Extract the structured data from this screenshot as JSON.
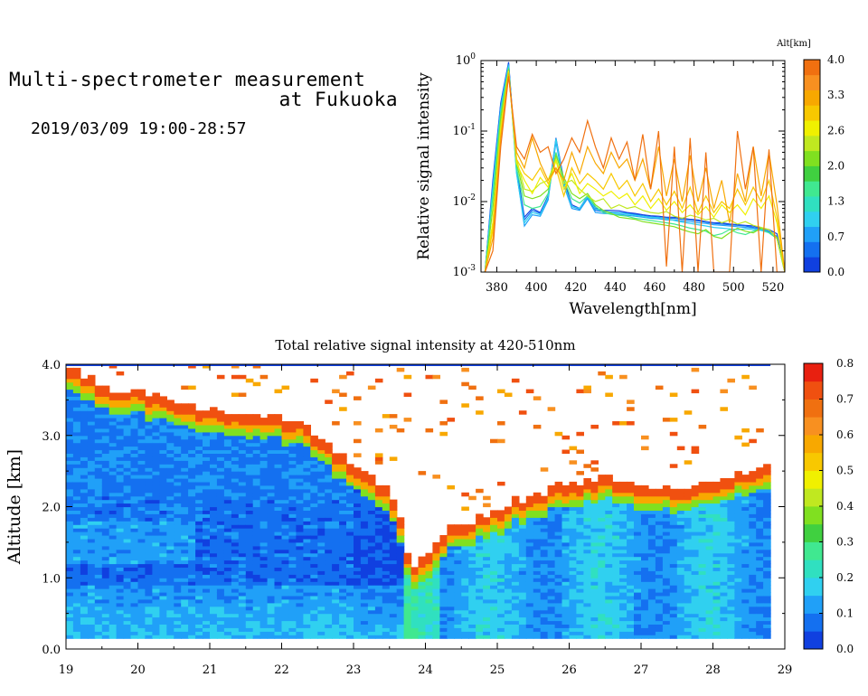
{
  "header": {
    "title_line1": "Multi-spectrometer measurement",
    "title_line2": "at Fukuoka",
    "date_range": "2019/03/09 19:00-28:57"
  },
  "chart_data": [
    {
      "type": "line",
      "title": "",
      "xlabel": "Wavelength[nm]",
      "ylabel": "Relative signal intensity",
      "yscale": "log",
      "xlim": [
        372,
        526
      ],
      "ylim": [
        0.001,
        1
      ],
      "x_ticks": [
        380,
        400,
        420,
        440,
        460,
        480,
        500,
        520
      ],
      "y_ticks": [
        {
          "value": 0.001,
          "base": "10",
          "exp": "-3"
        },
        {
          "value": 0.01,
          "base": "10",
          "exp": "-2"
        },
        {
          "value": 0.1,
          "base": "10",
          "exp": "-1"
        },
        {
          "value": 1,
          "base": "10",
          "exp": "0"
        }
      ],
      "colorbar": {
        "label": "Alt[km]",
        "ticks": [
          "0.0",
          "0.7",
          "1.3",
          "2.0",
          "2.6",
          "3.3",
          "4.0"
        ],
        "colors": [
          "#1040e0",
          "#1470f0",
          "#20a0f8",
          "#30d0f0",
          "#30e0c0",
          "#40e890",
          "#40d040",
          "#80e020",
          "#c0e820",
          "#f0f000",
          "#f8c800",
          "#f8a800",
          "#f89020",
          "#f07010"
        ]
      },
      "wavelengths": [
        374,
        378,
        382,
        386,
        390,
        394,
        398,
        402,
        406,
        410,
        414,
        418,
        422,
        426,
        430,
        434,
        438,
        442,
        446,
        450,
        454,
        458,
        462,
        466,
        470,
        474,
        478,
        482,
        486,
        490,
        494,
        498,
        502,
        506,
        510,
        514,
        518,
        522,
        526
      ],
      "series": [
        {
          "color": "#1040e0",
          "values": [
            0.001,
            0.02,
            0.25,
            0.95,
            0.03,
            0.006,
            0.008,
            0.007,
            0.012,
            0.08,
            0.02,
            0.009,
            0.008,
            0.012,
            0.008,
            0.0075,
            0.0075,
            0.0074,
            0.007,
            0.0068,
            0.0065,
            0.0063,
            0.0062,
            0.006,
            0.006,
            0.0058,
            0.0056,
            0.0055,
            0.0052,
            0.005,
            0.005,
            0.0048,
            0.0047,
            0.0046,
            0.0045,
            0.0042,
            0.004,
            0.0035,
            0.001
          ]
        },
        {
          "color": "#1470f0",
          "values": [
            0.001,
            0.018,
            0.24,
            0.9,
            0.028,
            0.0055,
            0.0075,
            0.0068,
            0.011,
            0.075,
            0.018,
            0.0085,
            0.0078,
            0.0115,
            0.0075,
            0.0072,
            0.0071,
            0.007,
            0.0068,
            0.0066,
            0.0063,
            0.0061,
            0.006,
            0.0058,
            0.0058,
            0.0056,
            0.0055,
            0.0053,
            0.0051,
            0.0049,
            0.0048,
            0.0047,
            0.0046,
            0.0045,
            0.0043,
            0.0041,
            0.0038,
            0.0032,
            0.001
          ]
        },
        {
          "color": "#20a0f8",
          "values": [
            0.001,
            0.016,
            0.22,
            0.88,
            0.026,
            0.0045,
            0.0065,
            0.0062,
            0.0105,
            0.07,
            0.017,
            0.008,
            0.0075,
            0.011,
            0.007,
            0.0068,
            0.0067,
            0.0066,
            0.0064,
            0.0062,
            0.006,
            0.0058,
            0.0057,
            0.0055,
            0.0055,
            0.0053,
            0.0052,
            0.005,
            0.0049,
            0.0047,
            0.0046,
            0.0045,
            0.0044,
            0.0043,
            0.0042,
            0.004,
            0.0037,
            0.003,
            0.001
          ]
        },
        {
          "color": "#30d0f0",
          "values": [
            0.001,
            0.015,
            0.2,
            0.85,
            0.025,
            0.005,
            0.007,
            0.0065,
            0.0115,
            0.078,
            0.018,
            0.0085,
            0.008,
            0.0118,
            0.0078,
            0.0074,
            0.007,
            0.0069,
            0.0067,
            0.0064,
            0.0062,
            0.006,
            0.0059,
            0.0057,
            0.0054,
            0.0051,
            0.0049,
            0.0047,
            0.0045,
            0.0043,
            0.0042,
            0.0041,
            0.004,
            0.0041,
            0.004,
            0.0039,
            0.0036,
            0.003,
            0.001
          ]
        },
        {
          "color": "#40e890",
          "values": [
            0.001,
            0.012,
            0.18,
            0.8,
            0.03,
            0.009,
            0.008,
            0.0085,
            0.013,
            0.05,
            0.02,
            0.011,
            0.0095,
            0.012,
            0.0085,
            0.007,
            0.0066,
            0.0064,
            0.0062,
            0.0058,
            0.0056,
            0.0054,
            0.0052,
            0.005,
            0.0048,
            0.0045,
            0.0042,
            0.004,
            0.0038,
            0.0033,
            0.0035,
            0.004,
            0.0036,
            0.0034,
            0.0038,
            0.0041,
            0.0036,
            0.003,
            0.001
          ]
        },
        {
          "color": "#80e020",
          "values": [
            0.001,
            0.008,
            0.15,
            0.75,
            0.035,
            0.012,
            0.011,
            0.012,
            0.015,
            0.045,
            0.022,
            0.013,
            0.011,
            0.013,
            0.009,
            0.0075,
            0.0068,
            0.006,
            0.0058,
            0.0056,
            0.0052,
            0.005,
            0.0048,
            0.0046,
            0.0044,
            0.004,
            0.0037,
            0.0035,
            0.004,
            0.0032,
            0.003,
            0.0036,
            0.0042,
            0.0038,
            0.0036,
            0.0042,
            0.004,
            0.0031,
            0.001
          ]
        },
        {
          "color": "#c0e820",
          "values": [
            0.001,
            0.005,
            0.12,
            0.72,
            0.04,
            0.015,
            0.014,
            0.018,
            0.02,
            0.04,
            0.018,
            0.02,
            0.015,
            0.012,
            0.01,
            0.011,
            0.008,
            0.009,
            0.008,
            0.0085,
            0.0075,
            0.007,
            0.0068,
            0.0072,
            0.0062,
            0.0058,
            0.0064,
            0.006,
            0.0055,
            0.0058,
            0.005,
            0.0055,
            0.0048,
            0.0052,
            0.0046,
            0.0043,
            0.004,
            0.003,
            0.001
          ]
        },
        {
          "color": "#f0f000",
          "values": [
            0.001,
            0.005,
            0.1,
            0.7,
            0.035,
            0.02,
            0.013,
            0.022,
            0.016,
            0.038,
            0.015,
            0.025,
            0.013,
            0.018,
            0.015,
            0.012,
            0.014,
            0.011,
            0.013,
            0.009,
            0.012,
            0.008,
            0.011,
            0.0075,
            0.01,
            0.007,
            0.009,
            0.0065,
            0.0085,
            0.006,
            0.009,
            0.007,
            0.009,
            0.0065,
            0.011,
            0.008,
            0.012,
            0.005,
            0.001
          ]
        },
        {
          "color": "#f8c800",
          "values": [
            0.001,
            0.004,
            0.09,
            0.68,
            0.04,
            0.025,
            0.02,
            0.03,
            0.018,
            0.03,
            0.012,
            0.03,
            0.018,
            0.025,
            0.02,
            0.015,
            0.025,
            0.015,
            0.02,
            0.012,
            0.018,
            0.01,
            0.015,
            0.009,
            0.014,
            0.008,
            0.016,
            0.007,
            0.012,
            0.007,
            0.01,
            0.008,
            0.015,
            0.009,
            0.016,
            0.01,
            0.02,
            0.006,
            0.001
          ]
        },
        {
          "color": "#f8a800",
          "values": [
            0.001,
            0.003,
            0.08,
            0.65,
            0.05,
            0.03,
            0.08,
            0.035,
            0.02,
            0.03,
            0.02,
            0.05,
            0.025,
            0.06,
            0.035,
            0.025,
            0.05,
            0.03,
            0.04,
            0.02,
            0.04,
            0.015,
            0.06,
            0.012,
            0.04,
            0.01,
            0.045,
            0.01,
            0.03,
            0.008,
            0.02,
            0.005,
            0.025,
            0.01,
            0.06,
            0.012,
            0.05,
            0.009,
            0.001
          ]
        },
        {
          "color": "#f07010",
          "values": [
            0.001,
            0.002,
            0.06,
            0.6,
            0.06,
            0.04,
            0.09,
            0.05,
            0.06,
            0.025,
            0.04,
            0.08,
            0.05,
            0.14,
            0.06,
            0.03,
            0.08,
            0.04,
            0.07,
            0.02,
            0.09,
            0.015,
            0.1,
            0.0012,
            0.06,
            0.001,
            0.08,
            0.001,
            0.05,
            0.001,
            0.001,
            0.001,
            0.1,
            0.015,
            0.06,
            0.001,
            0.055,
            0.001,
            0.001
          ]
        }
      ]
    },
    {
      "type": "heatmap",
      "title": "Total relative signal intensity at 420-510nm",
      "xlabel": "",
      "ylabel": "Altitude [km]",
      "xlim": [
        19,
        29
      ],
      "ylim": [
        0,
        4
      ],
      "x_ticks": [
        "19",
        "20",
        "21",
        "22",
        "23",
        "24",
        "25",
        "26",
        "27",
        "28",
        "29"
      ],
      "y_ticks": [
        "0.0",
        "1.0",
        "2.0",
        "3.0",
        "4.0"
      ],
      "data_xlim": [
        19,
        28.8
      ],
      "data_ymin": 0.15,
      "colorbar": {
        "label": "",
        "ticks": [
          "0.0",
          "0.1",
          "0.2",
          "0.3",
          "0.4",
          "0.5",
          "0.6",
          "0.7",
          "0.8"
        ],
        "colors": [
          "#1040e0",
          "#1470f0",
          "#20a0f8",
          "#30d0f0",
          "#30e0c0",
          "#40e890",
          "#40d040",
          "#80e020",
          "#c0e820",
          "#f0f000",
          "#f8c800",
          "#f8a800",
          "#f89020",
          "#f07010",
          "#f05010",
          "#e82010"
        ]
      },
      "cloud_top_km": [
        {
          "t": 19.0,
          "alt": 3.9
        },
        {
          "t": 19.5,
          "alt": 3.65
        },
        {
          "t": 20.0,
          "alt": 3.55
        },
        {
          "t": 20.5,
          "alt": 3.45
        },
        {
          "t": 21.0,
          "alt": 3.3
        },
        {
          "t": 21.5,
          "alt": 3.25
        },
        {
          "t": 22.0,
          "alt": 3.2
        },
        {
          "t": 22.3,
          "alt": 3.1
        },
        {
          "t": 22.6,
          "alt": 2.85
        },
        {
          "t": 22.9,
          "alt": 2.6
        },
        {
          "t": 23.2,
          "alt": 2.45
        },
        {
          "t": 23.5,
          "alt": 2.1
        },
        {
          "t": 23.7,
          "alt": 1.6
        },
        {
          "t": 23.8,
          "alt": 1.1
        },
        {
          "t": 24.0,
          "alt": 1.25
        },
        {
          "t": 24.3,
          "alt": 1.6
        },
        {
          "t": 24.6,
          "alt": 1.75
        },
        {
          "t": 25.0,
          "alt": 1.9
        },
        {
          "t": 25.3,
          "alt": 2.05
        },
        {
          "t": 25.6,
          "alt": 2.15
        },
        {
          "t": 26.0,
          "alt": 2.25
        },
        {
          "t": 26.4,
          "alt": 2.35
        },
        {
          "t": 26.8,
          "alt": 2.3
        },
        {
          "t": 27.2,
          "alt": 2.2
        },
        {
          "t": 27.6,
          "alt": 2.15
        },
        {
          "t": 28.0,
          "alt": 2.3
        },
        {
          "t": 28.4,
          "alt": 2.45
        },
        {
          "t": 28.8,
          "alt": 2.55
        }
      ]
    }
  ]
}
